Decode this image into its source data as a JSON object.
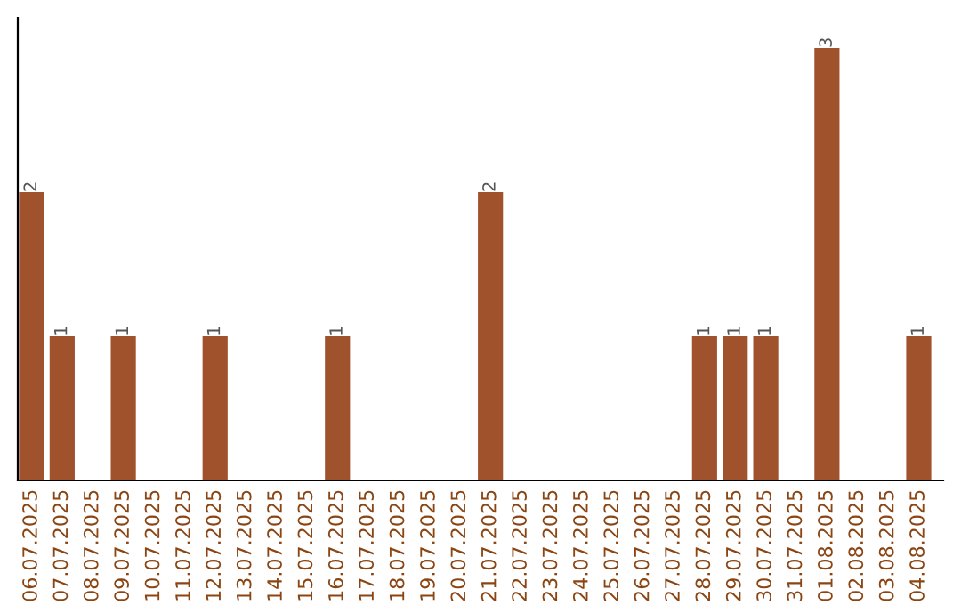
{
  "chart_data": {
    "type": "bar",
    "categories": [
      "06.07.2025",
      "07.07.2025",
      "08.07.2025",
      "09.07.2025",
      "10.07.2025",
      "11.07.2025",
      "12.07.2025",
      "13.07.2025",
      "14.07.2025",
      "15.07.2025",
      "16.07.2025",
      "17.07.2025",
      "18.07.2025",
      "19.07.2025",
      "20.07.2025",
      "21.07.2025",
      "22.07.2025",
      "23.07.2025",
      "24.07.2025",
      "25.07.2025",
      "26.07.2025",
      "27.07.2025",
      "28.07.2025",
      "29.07.2025",
      "30.07.2025",
      "31.07.2025",
      "01.08.2025",
      "02.08.2025",
      "03.08.2025",
      "04.08.2025"
    ],
    "values": [
      2,
      1,
      0,
      1,
      0,
      0,
      1,
      0,
      0,
      0,
      1,
      0,
      0,
      0,
      0,
      2,
      0,
      0,
      0,
      0,
      0,
      0,
      1,
      1,
      1,
      0,
      3,
      0,
      0,
      1
    ],
    "value_labels": [
      "2",
      "1",
      null,
      "1",
      null,
      null,
      "1",
      null,
      null,
      null,
      "1",
      null,
      null,
      null,
      null,
      "2",
      null,
      null,
      null,
      null,
      null,
      null,
      "1",
      "1",
      "1",
      null,
      "3",
      null,
      null,
      "1"
    ],
    "color": "#a0522d",
    "grid": false,
    "tick_labels": "x"
  }
}
